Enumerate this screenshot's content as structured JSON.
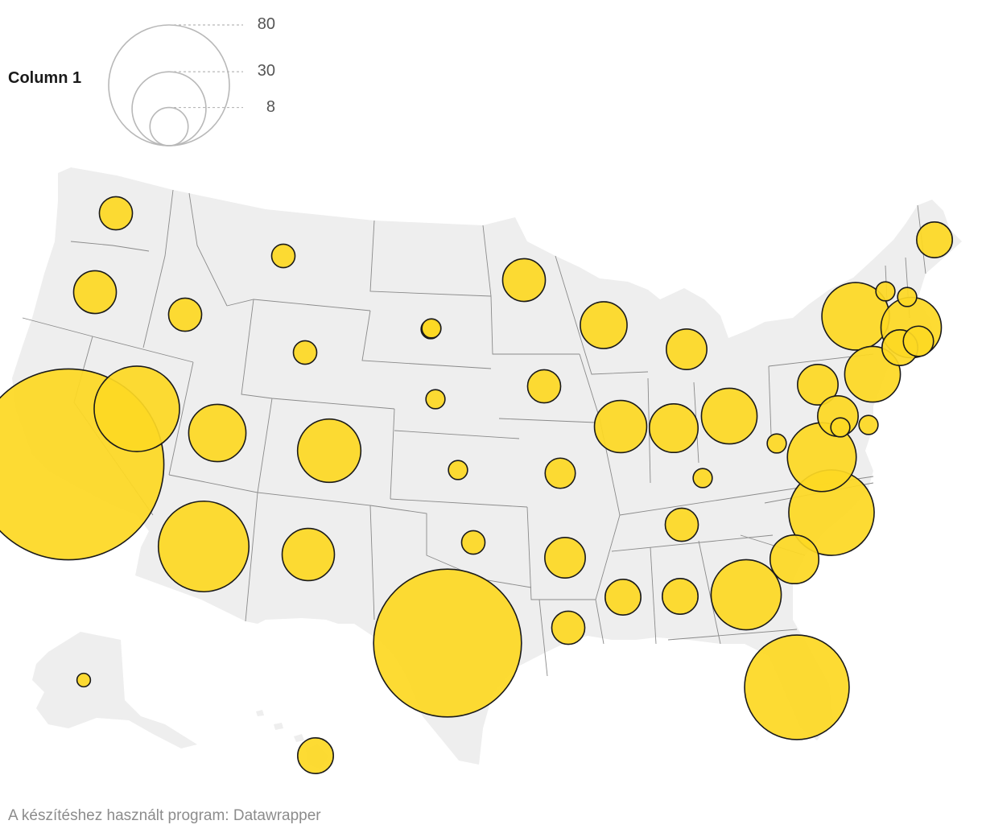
{
  "legend": {
    "title": "Column 1",
    "sizes": [
      {
        "label": "80",
        "value": 80
      },
      {
        "label": "30",
        "value": 30
      },
      {
        "label": "8",
        "value": 8
      }
    ]
  },
  "credit": "A készítéshez használt program: Datawrapper",
  "colors": {
    "land": "#eeeeee",
    "border": "#8a8a8a",
    "bubble_fill": "#fdd823",
    "bubble_stroke": "#1a1a1a",
    "legend_stroke": "#b8b8b8"
  },
  "bubbles": [
    {
      "state": "Washington",
      "value": 6
    },
    {
      "state": "Oregon",
      "value": 10
    },
    {
      "state": "Idaho",
      "value": 6
    },
    {
      "state": "Montana",
      "value": 3
    },
    {
      "state": "California",
      "value": 200
    },
    {
      "state": "Nevada",
      "value": 40
    },
    {
      "state": "Utah",
      "value": 18
    },
    {
      "state": "Wyoming",
      "value": 3
    },
    {
      "state": "Colorado",
      "value": 22
    },
    {
      "state": "Arizona",
      "value": 45
    },
    {
      "state": "New Mexico",
      "value": 15
    },
    {
      "state": "North Dakota",
      "value": 2
    },
    {
      "state": "South Dakota",
      "value": 2
    },
    {
      "state": "Nebraska",
      "value": 2
    },
    {
      "state": "Kansas",
      "value": 2
    },
    {
      "state": "Oklahoma",
      "value": 3
    },
    {
      "state": "Texas",
      "value": 120
    },
    {
      "state": "Minnesota",
      "value": 10
    },
    {
      "state": "Iowa",
      "value": 6
    },
    {
      "state": "Missouri",
      "value": 5
    },
    {
      "state": "Arkansas",
      "value": 9
    },
    {
      "state": "Louisiana",
      "value": 6
    },
    {
      "state": "Wisconsin",
      "value": 12
    },
    {
      "state": "Illinois",
      "value": 15
    },
    {
      "state": "Michigan",
      "value": 9
    },
    {
      "state": "Indiana",
      "value": 13
    },
    {
      "state": "Ohio",
      "value": 17
    },
    {
      "state": "Kentucky",
      "value": 2
    },
    {
      "state": "Tennessee",
      "value": 6
    },
    {
      "state": "Mississippi",
      "value": 7
    },
    {
      "state": "Alabama",
      "value": 7
    },
    {
      "state": "Georgia",
      "value": 27
    },
    {
      "state": "Florida",
      "value": 60
    },
    {
      "state": "South Carolina",
      "value": 13
    },
    {
      "state": "North Carolina",
      "value": 40
    },
    {
      "state": "Virginia",
      "value": 26
    },
    {
      "state": "West Virginia",
      "value": 2
    },
    {
      "state": "Pennsylvania",
      "value": 9
    },
    {
      "state": "New York",
      "value": 25
    },
    {
      "state": "New Jersey",
      "value": 17
    },
    {
      "state": "Maryland",
      "value": 9
    },
    {
      "state": "Delaware",
      "value": 2
    },
    {
      "state": "District of Columbia",
      "value": 2
    },
    {
      "state": "Connecticut",
      "value": 7
    },
    {
      "state": "Rhode Island",
      "value": 5
    },
    {
      "state": "Massachusetts",
      "value": 20
    },
    {
      "state": "Vermont",
      "value": 2
    },
    {
      "state": "New Hampshire",
      "value": 2
    },
    {
      "state": "Maine",
      "value": 7
    },
    {
      "state": "Alaska",
      "value": 1
    },
    {
      "state": "Hawaii",
      "value": 7
    }
  ]
}
